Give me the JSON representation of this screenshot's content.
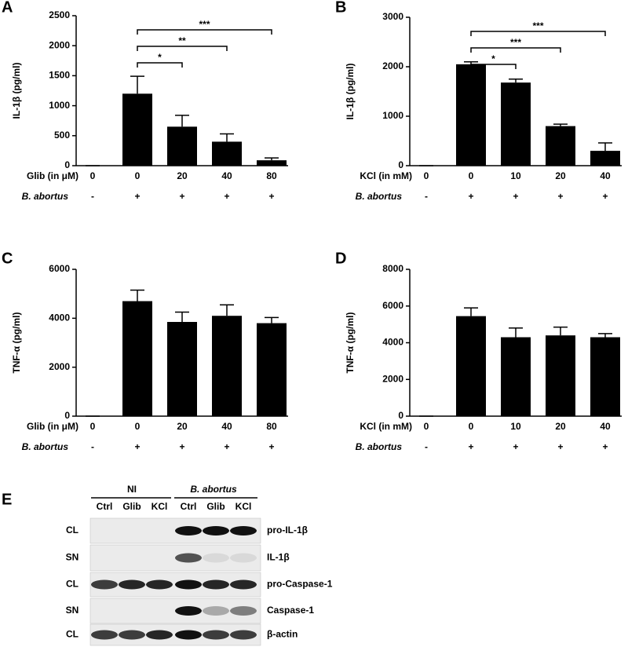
{
  "chart_data": [
    {
      "type": "bar",
      "panel": "A",
      "ylabel": "IL-1β (pg/ml)",
      "xlabel": "Glib (in μM)",
      "categories": [
        "0",
        "0",
        "20",
        "40",
        "80"
      ],
      "values": [
        0,
        1200,
        650,
        400,
        90
      ],
      "errors": [
        0,
        290,
        190,
        130,
        40
      ],
      "color": "#000000",
      "ylim": [
        0,
        2500
      ],
      "yticks": [
        0,
        500,
        1000,
        1500,
        2000,
        2500
      ],
      "significance": [
        null,
        null,
        "*",
        "**",
        "***"
      ],
      "condition": {
        "label": "B. abortus",
        "values": [
          "-",
          "+",
          "+",
          "+",
          "+"
        ]
      }
    },
    {
      "type": "bar",
      "panel": "B",
      "ylabel": "IL-1β (pg/ml)",
      "xlabel": "KCl (in mM)",
      "categories": [
        "0",
        "0",
        "10",
        "20",
        "40"
      ],
      "values": [
        0,
        2050,
        1680,
        800,
        300
      ],
      "errors": [
        0,
        50,
        70,
        40,
        160
      ],
      "color": "#000000",
      "ylim": [
        0,
        3000
      ],
      "yticks": [
        0,
        1000,
        2000,
        3000
      ],
      "significance": [
        null,
        null,
        "*",
        "***",
        "***"
      ],
      "condition": {
        "label": "B. abortus",
        "values": [
          "-",
          "+",
          "+",
          "+",
          "+"
        ]
      }
    },
    {
      "type": "bar",
      "panel": "C",
      "ylabel": "TNF-α (pg/ml)",
      "xlabel": "Glib (in μM)",
      "categories": [
        "0",
        "0",
        "20",
        "40",
        "80"
      ],
      "values": [
        0,
        4700,
        3850,
        4100,
        3800
      ],
      "errors": [
        0,
        450,
        400,
        450,
        230
      ],
      "color": "#000000",
      "ylim": [
        0,
        6000
      ],
      "yticks": [
        0,
        2000,
        4000,
        6000
      ],
      "condition": {
        "label": "B. abortus",
        "values": [
          "-",
          "+",
          "+",
          "+",
          "+"
        ]
      }
    },
    {
      "type": "bar",
      "panel": "D",
      "ylabel": "TNF-α (pg/ml)",
      "xlabel": "KCl (in mM)",
      "categories": [
        "0",
        "0",
        "10",
        "20",
        "40"
      ],
      "values": [
        0,
        5450,
        4300,
        4400,
        4300
      ],
      "errors": [
        0,
        450,
        500,
        450,
        200
      ],
      "color": "#000000",
      "ylim": [
        0,
        8000
      ],
      "yticks": [
        0,
        2000,
        4000,
        6000,
        8000
      ],
      "condition": {
        "label": "B. abortus",
        "values": [
          "-",
          "+",
          "+",
          "+",
          "+"
        ]
      }
    }
  ],
  "blot": {
    "panel": "E",
    "groups": [
      "NI",
      "B. abortus"
    ],
    "lanes": [
      "Ctrl",
      "Glib",
      "KCl",
      "Ctrl",
      "Glib",
      "KCl"
    ],
    "rows": [
      {
        "fraction": "CL",
        "protein": "pro-IL-1β"
      },
      {
        "fraction": "SN",
        "protein": "IL-1β"
      },
      {
        "fraction": "CL",
        "protein": "pro-Caspase-1"
      },
      {
        "fraction": "SN",
        "protein": "Caspase-1"
      },
      {
        "fraction": "CL",
        "protein": "β-actin"
      }
    ]
  }
}
